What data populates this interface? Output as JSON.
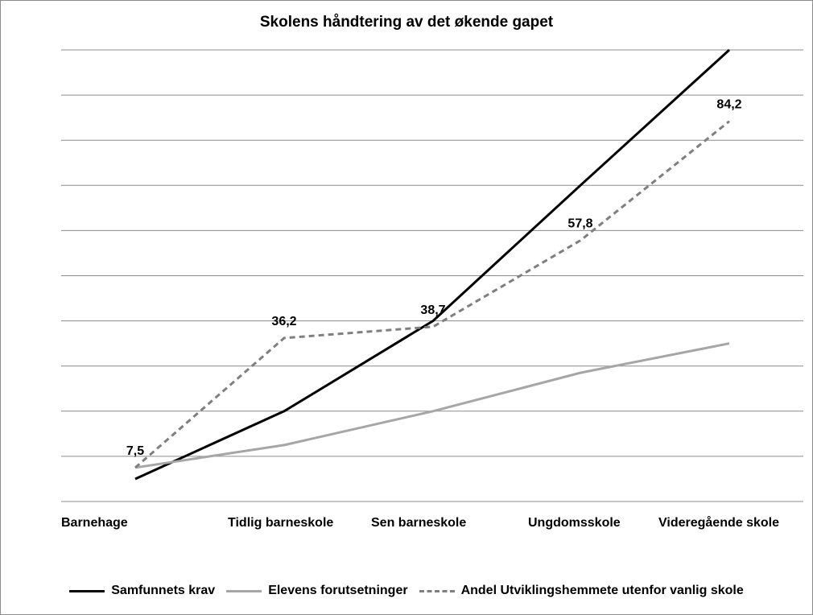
{
  "chart_data": {
    "type": "line",
    "title": "Skolens håndtering av det økende gapet",
    "categories": [
      "Barnehage",
      "Tidlig barneskole",
      "Sen barneskole",
      "Ungdomsskole",
      "Videregående skole"
    ],
    "ylim": [
      0,
      100
    ],
    "grid": true,
    "legend_position": "bottom",
    "series": [
      {
        "name": "Samfunnets krav",
        "values": [
          5,
          20,
          40,
          70,
          100
        ],
        "color": "#000000",
        "style": "solid",
        "labels": [
          "",
          "",
          "",
          "",
          ""
        ]
      },
      {
        "name": "Elevens forutsetninger",
        "values": [
          7.5,
          12.5,
          20,
          28.5,
          35
        ],
        "color": "#a6a6a6",
        "style": "solid",
        "labels": [
          "",
          "",
          "",
          "",
          ""
        ]
      },
      {
        "name": "Andel Utviklingshemmete utenfor vanlig skole",
        "values": [
          7.5,
          36.2,
          38.7,
          57.8,
          84.2
        ],
        "color": "#7f7f7f",
        "style": "dashed",
        "labels": [
          "7,5",
          "36,2",
          "38,7",
          "57,8",
          "84,2"
        ]
      }
    ]
  }
}
